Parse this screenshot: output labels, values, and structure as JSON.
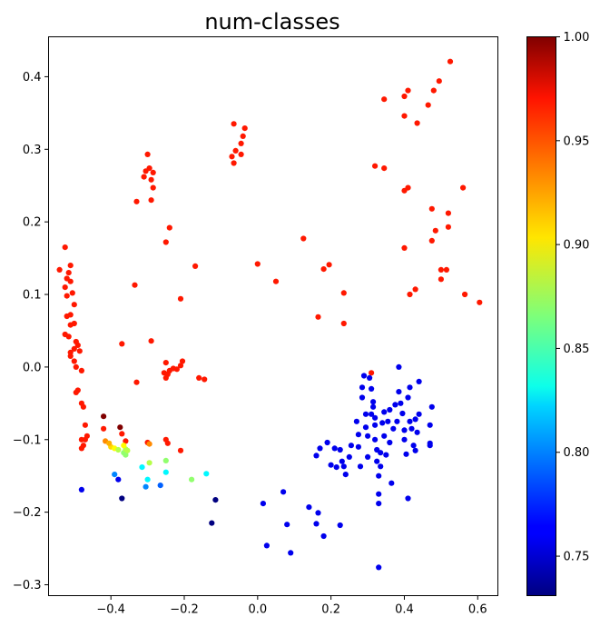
{
  "chart_data": {
    "type": "scatter",
    "title": "num-classes",
    "xlabel": "",
    "ylabel": "",
    "xlim": [
      -0.57,
      0.655
    ],
    "ylim": [
      -0.315,
      0.455
    ],
    "x_ticks": [
      -0.4,
      -0.2,
      0.0,
      0.2,
      0.4,
      0.6
    ],
    "x_tick_labels": [
      "−0.4",
      "−0.2",
      "0.0",
      "0.2",
      "0.4",
      "0.6"
    ],
    "y_ticks": [
      -0.3,
      -0.2,
      -0.1,
      0.0,
      0.1,
      0.2,
      0.3,
      0.4
    ],
    "y_tick_labels": [
      "−0.3",
      "−0.2",
      "−0.1",
      "0.0",
      "0.1",
      "0.2",
      "0.3",
      "0.4"
    ],
    "grid": false,
    "colorbar": {
      "colormap": "jet",
      "range": [
        0.731,
        1.0
      ],
      "ticks": [
        0.75,
        0.8,
        0.85,
        0.9,
        0.95,
        1.0
      ],
      "tick_labels": [
        "0.75",
        "0.80",
        "0.85",
        "0.90",
        "0.95",
        "1.00"
      ]
    },
    "points": [
      [
        -0.54,
        0.134,
        0.96
      ],
      [
        -0.525,
        0.165,
        0.96
      ],
      [
        -0.52,
        0.122,
        0.96
      ],
      [
        -0.515,
        0.13,
        0.96
      ],
      [
        -0.51,
        0.14,
        0.96
      ],
      [
        -0.51,
        0.118,
        0.96
      ],
      [
        -0.525,
        0.11,
        0.96
      ],
      [
        -0.52,
        0.098,
        0.96
      ],
      [
        -0.505,
        0.102,
        0.96
      ],
      [
        -0.5,
        0.086,
        0.96
      ],
      [
        -0.52,
        0.07,
        0.96
      ],
      [
        -0.51,
        0.072,
        0.96
      ],
      [
        -0.5,
        0.06,
        0.96
      ],
      [
        -0.51,
        0.058,
        0.96
      ],
      [
        -0.525,
        0.045,
        0.96
      ],
      [
        -0.515,
        0.042,
        0.96
      ],
      [
        -0.495,
        0.035,
        0.96
      ],
      [
        -0.49,
        0.03,
        0.96
      ],
      [
        -0.5,
        0.025,
        0.96
      ],
      [
        -0.51,
        0.02,
        0.96
      ],
      [
        -0.485,
        0.022,
        0.96
      ],
      [
        -0.5,
        0.008,
        0.96
      ],
      [
        -0.51,
        0.015,
        0.96
      ],
      [
        -0.495,
        0.0,
        0.96
      ],
      [
        -0.48,
        -0.005,
        0.96
      ],
      [
        -0.49,
        -0.032,
        0.96
      ],
      [
        -0.495,
        -0.035,
        0.96
      ],
      [
        -0.48,
        -0.05,
        0.96
      ],
      [
        -0.475,
        -0.055,
        0.96
      ],
      [
        -0.47,
        -0.08,
        0.96
      ],
      [
        -0.48,
        -0.1,
        0.96
      ],
      [
        -0.475,
        -0.108,
        0.96
      ],
      [
        -0.47,
        -0.1,
        0.96
      ],
      [
        -0.465,
        -0.095,
        0.96
      ],
      [
        -0.48,
        -0.112,
        0.96
      ],
      [
        -0.42,
        -0.085,
        0.96
      ],
      [
        -0.37,
        -0.092,
        0.96
      ],
      [
        -0.36,
        -0.102,
        0.96
      ],
      [
        -0.3,
        -0.104,
        0.96
      ],
      [
        -0.25,
        -0.1,
        0.96
      ],
      [
        -0.245,
        -0.105,
        0.96
      ],
      [
        -0.21,
        -0.115,
        0.96
      ],
      [
        -0.37,
        0.032,
        0.96
      ],
      [
        -0.335,
        0.113,
        0.96
      ],
      [
        -0.33,
        0.228,
        0.96
      ],
      [
        -0.29,
        0.036,
        0.96
      ],
      [
        -0.3,
        0.293,
        0.96
      ],
      [
        -0.31,
        0.262,
        0.96
      ],
      [
        -0.305,
        0.27,
        0.96
      ],
      [
        -0.295,
        0.274,
        0.96
      ],
      [
        -0.285,
        0.268,
        0.96
      ],
      [
        -0.29,
        0.258,
        0.96
      ],
      [
        -0.285,
        0.247,
        0.96
      ],
      [
        -0.29,
        0.23,
        0.96
      ],
      [
        -0.25,
        0.172,
        0.96
      ],
      [
        -0.24,
        0.192,
        0.96
      ],
      [
        -0.17,
        0.139,
        0.96
      ],
      [
        -0.21,
        0.094,
        0.96
      ],
      [
        -0.33,
        -0.021,
        0.96
      ],
      [
        -0.255,
        -0.008,
        0.96
      ],
      [
        -0.25,
        -0.015,
        0.96
      ],
      [
        -0.245,
        -0.01,
        0.96
      ],
      [
        -0.24,
        -0.005,
        0.96
      ],
      [
        -0.25,
        0.006,
        0.96
      ],
      [
        -0.23,
        -0.002,
        0.96
      ],
      [
        -0.22,
        -0.003,
        0.96
      ],
      [
        -0.21,
        0.002,
        0.96
      ],
      [
        -0.205,
        0.008,
        0.96
      ],
      [
        -0.16,
        -0.015,
        0.96
      ],
      [
        -0.145,
        -0.017,
        0.96
      ],
      [
        -0.07,
        0.29,
        0.96
      ],
      [
        -0.065,
        0.281,
        0.96
      ],
      [
        -0.06,
        0.298,
        0.96
      ],
      [
        -0.065,
        0.335,
        0.96
      ],
      [
        -0.045,
        0.293,
        0.96
      ],
      [
        -0.045,
        0.308,
        0.96
      ],
      [
        -0.04,
        0.318,
        0.96
      ],
      [
        -0.035,
        0.329,
        0.96
      ],
      [
        0.0,
        0.142,
        0.96
      ],
      [
        0.05,
        0.118,
        0.96
      ],
      [
        0.125,
        0.177,
        0.96
      ],
      [
        0.165,
        0.069,
        0.96
      ],
      [
        0.18,
        0.135,
        0.96
      ],
      [
        0.195,
        0.141,
        0.96
      ],
      [
        0.235,
        0.102,
        0.96
      ],
      [
        0.235,
        0.06,
        0.96
      ],
      [
        0.31,
        -0.008,
        0.96
      ],
      [
        0.32,
        0.277,
        0.96
      ],
      [
        0.345,
        0.274,
        0.96
      ],
      [
        0.345,
        0.369,
        0.96
      ],
      [
        0.4,
        0.243,
        0.96
      ],
      [
        0.4,
        0.373,
        0.96
      ],
      [
        0.41,
        0.247,
        0.96
      ],
      [
        0.41,
        0.381,
        0.96
      ],
      [
        0.4,
        0.346,
        0.96
      ],
      [
        0.435,
        0.336,
        0.96
      ],
      [
        0.4,
        0.164,
        0.96
      ],
      [
        0.415,
        0.1,
        0.96
      ],
      [
        0.43,
        0.107,
        0.96
      ],
      [
        0.465,
        0.361,
        0.96
      ],
      [
        0.48,
        0.381,
        0.96
      ],
      [
        0.495,
        0.394,
        0.96
      ],
      [
        0.525,
        0.421,
        0.96
      ],
      [
        0.475,
        0.218,
        0.96
      ],
      [
        0.475,
        0.174,
        0.96
      ],
      [
        0.485,
        0.188,
        0.96
      ],
      [
        0.5,
        0.134,
        0.96
      ],
      [
        0.5,
        0.121,
        0.96
      ],
      [
        0.515,
        0.134,
        0.96
      ],
      [
        0.52,
        0.193,
        0.96
      ],
      [
        0.52,
        0.212,
        0.96
      ],
      [
        0.56,
        0.247,
        0.96
      ],
      [
        0.565,
        0.1,
        0.96
      ],
      [
        0.605,
        0.089,
        0.96
      ],
      [
        -0.42,
        -0.068,
        1.0
      ],
      [
        -0.375,
        -0.083,
        1.0
      ],
      [
        -0.415,
        -0.102,
        0.93
      ],
      [
        -0.4,
        -0.11,
        0.91
      ],
      [
        -0.405,
        -0.105,
        0.92
      ],
      [
        -0.39,
        -0.112,
        0.9
      ],
      [
        -0.38,
        -0.114,
        0.88
      ],
      [
        -0.365,
        -0.118,
        0.87
      ],
      [
        -0.36,
        -0.113,
        0.88
      ],
      [
        -0.36,
        -0.121,
        0.87
      ],
      [
        -0.355,
        -0.115,
        0.88
      ],
      [
        -0.365,
        -0.108,
        0.9
      ],
      [
        -0.295,
        -0.106,
        0.93
      ],
      [
        -0.295,
        -0.132,
        0.88
      ],
      [
        -0.25,
        -0.129,
        0.87
      ],
      [
        -0.18,
        -0.155,
        0.87
      ],
      [
        -0.315,
        -0.138,
        0.83
      ],
      [
        -0.3,
        -0.155,
        0.83
      ],
      [
        -0.25,
        -0.145,
        0.83
      ],
      [
        -0.14,
        -0.147,
        0.83
      ],
      [
        -0.39,
        -0.148,
        0.8
      ],
      [
        -0.305,
        -0.165,
        0.8
      ],
      [
        -0.265,
        -0.163,
        0.79
      ],
      [
        -0.48,
        -0.169,
        0.76
      ],
      [
        -0.38,
        -0.155,
        0.76
      ],
      [
        -0.37,
        -0.181,
        0.73
      ],
      [
        -0.125,
        -0.215,
        0.73
      ],
      [
        -0.115,
        -0.183,
        0.73
      ],
      [
        0.015,
        -0.188,
        0.76
      ],
      [
        0.025,
        -0.246,
        0.76
      ],
      [
        0.07,
        -0.172,
        0.76
      ],
      [
        0.08,
        -0.217,
        0.76
      ],
      [
        0.09,
        -0.256,
        0.76
      ],
      [
        0.14,
        -0.193,
        0.76
      ],
      [
        0.16,
        -0.216,
        0.76
      ],
      [
        0.165,
        -0.201,
        0.76
      ],
      [
        0.18,
        -0.233,
        0.76
      ],
      [
        0.225,
        -0.218,
        0.76
      ],
      [
        0.16,
        -0.122,
        0.76
      ],
      [
        0.17,
        -0.112,
        0.76
      ],
      [
        0.19,
        -0.104,
        0.76
      ],
      [
        0.2,
        -0.135,
        0.76
      ],
      [
        0.21,
        -0.112,
        0.76
      ],
      [
        0.225,
        -0.114,
        0.76
      ],
      [
        0.23,
        -0.13,
        0.76
      ],
      [
        0.235,
        -0.137,
        0.76
      ],
      [
        0.24,
        -0.148,
        0.76
      ],
      [
        0.25,
        -0.124,
        0.76
      ],
      [
        0.255,
        -0.108,
        0.76
      ],
      [
        0.27,
        -0.075,
        0.76
      ],
      [
        0.275,
        -0.093,
        0.76
      ],
      [
        0.275,
        -0.11,
        0.76
      ],
      [
        0.28,
        -0.137,
        0.76
      ],
      [
        0.285,
        -0.042,
        0.76
      ],
      [
        0.285,
        -0.028,
        0.76
      ],
      [
        0.29,
        -0.012,
        0.76
      ],
      [
        0.295,
        -0.065,
        0.76
      ],
      [
        0.295,
        -0.083,
        0.76
      ],
      [
        0.3,
        -0.095,
        0.76
      ],
      [
        0.3,
        -0.124,
        0.76
      ],
      [
        0.305,
        -0.015,
        0.76
      ],
      [
        0.31,
        -0.03,
        0.76
      ],
      [
        0.31,
        -0.065,
        0.76
      ],
      [
        0.315,
        -0.048,
        0.76
      ],
      [
        0.315,
        -0.055,
        0.76
      ],
      [
        0.32,
        -0.07,
        0.76
      ],
      [
        0.32,
        -0.08,
        0.76
      ],
      [
        0.32,
        -0.1,
        0.76
      ],
      [
        0.325,
        -0.114,
        0.76
      ],
      [
        0.325,
        -0.13,
        0.76
      ],
      [
        0.33,
        -0.15,
        0.76
      ],
      [
        0.33,
        -0.175,
        0.76
      ],
      [
        0.33,
        -0.188,
        0.76
      ],
      [
        0.335,
        -0.118,
        0.76
      ],
      [
        0.335,
        -0.137,
        0.76
      ],
      [
        0.34,
        -0.077,
        0.76
      ],
      [
        0.345,
        -0.062,
        0.76
      ],
      [
        0.345,
        -0.095,
        0.76
      ],
      [
        0.35,
        -0.121,
        0.76
      ],
      [
        0.355,
        -0.075,
        0.76
      ],
      [
        0.36,
        -0.059,
        0.76
      ],
      [
        0.36,
        -0.104,
        0.76
      ],
      [
        0.365,
        -0.16,
        0.76
      ],
      [
        0.37,
        -0.085,
        0.76
      ],
      [
        0.375,
        -0.052,
        0.76
      ],
      [
        0.38,
        -0.075,
        0.76
      ],
      [
        0.385,
        0.0,
        0.76
      ],
      [
        0.385,
        -0.034,
        0.76
      ],
      [
        0.39,
        -0.05,
        0.76
      ],
      [
        0.395,
        -0.064,
        0.76
      ],
      [
        0.4,
        -0.087,
        0.76
      ],
      [
        0.4,
        -0.1,
        0.76
      ],
      [
        0.405,
        -0.12,
        0.76
      ],
      [
        0.41,
        -0.042,
        0.76
      ],
      [
        0.41,
        -0.181,
        0.76
      ],
      [
        0.415,
        -0.028,
        0.76
      ],
      [
        0.415,
        -0.075,
        0.76
      ],
      [
        0.42,
        -0.085,
        0.76
      ],
      [
        0.425,
        -0.108,
        0.76
      ],
      [
        0.43,
        -0.115,
        0.76
      ],
      [
        0.43,
        -0.072,
        0.76
      ],
      [
        0.435,
        -0.09,
        0.76
      ],
      [
        0.44,
        -0.065,
        0.76
      ],
      [
        0.44,
        -0.02,
        0.76
      ],
      [
        0.47,
        -0.08,
        0.76
      ],
      [
        0.47,
        -0.105,
        0.76
      ],
      [
        0.47,
        -0.108,
        0.76
      ],
      [
        0.475,
        -0.055,
        0.76
      ],
      [
        0.33,
        -0.276,
        0.76
      ],
      [
        0.215,
        -0.138,
        0.76
      ]
    ]
  }
}
